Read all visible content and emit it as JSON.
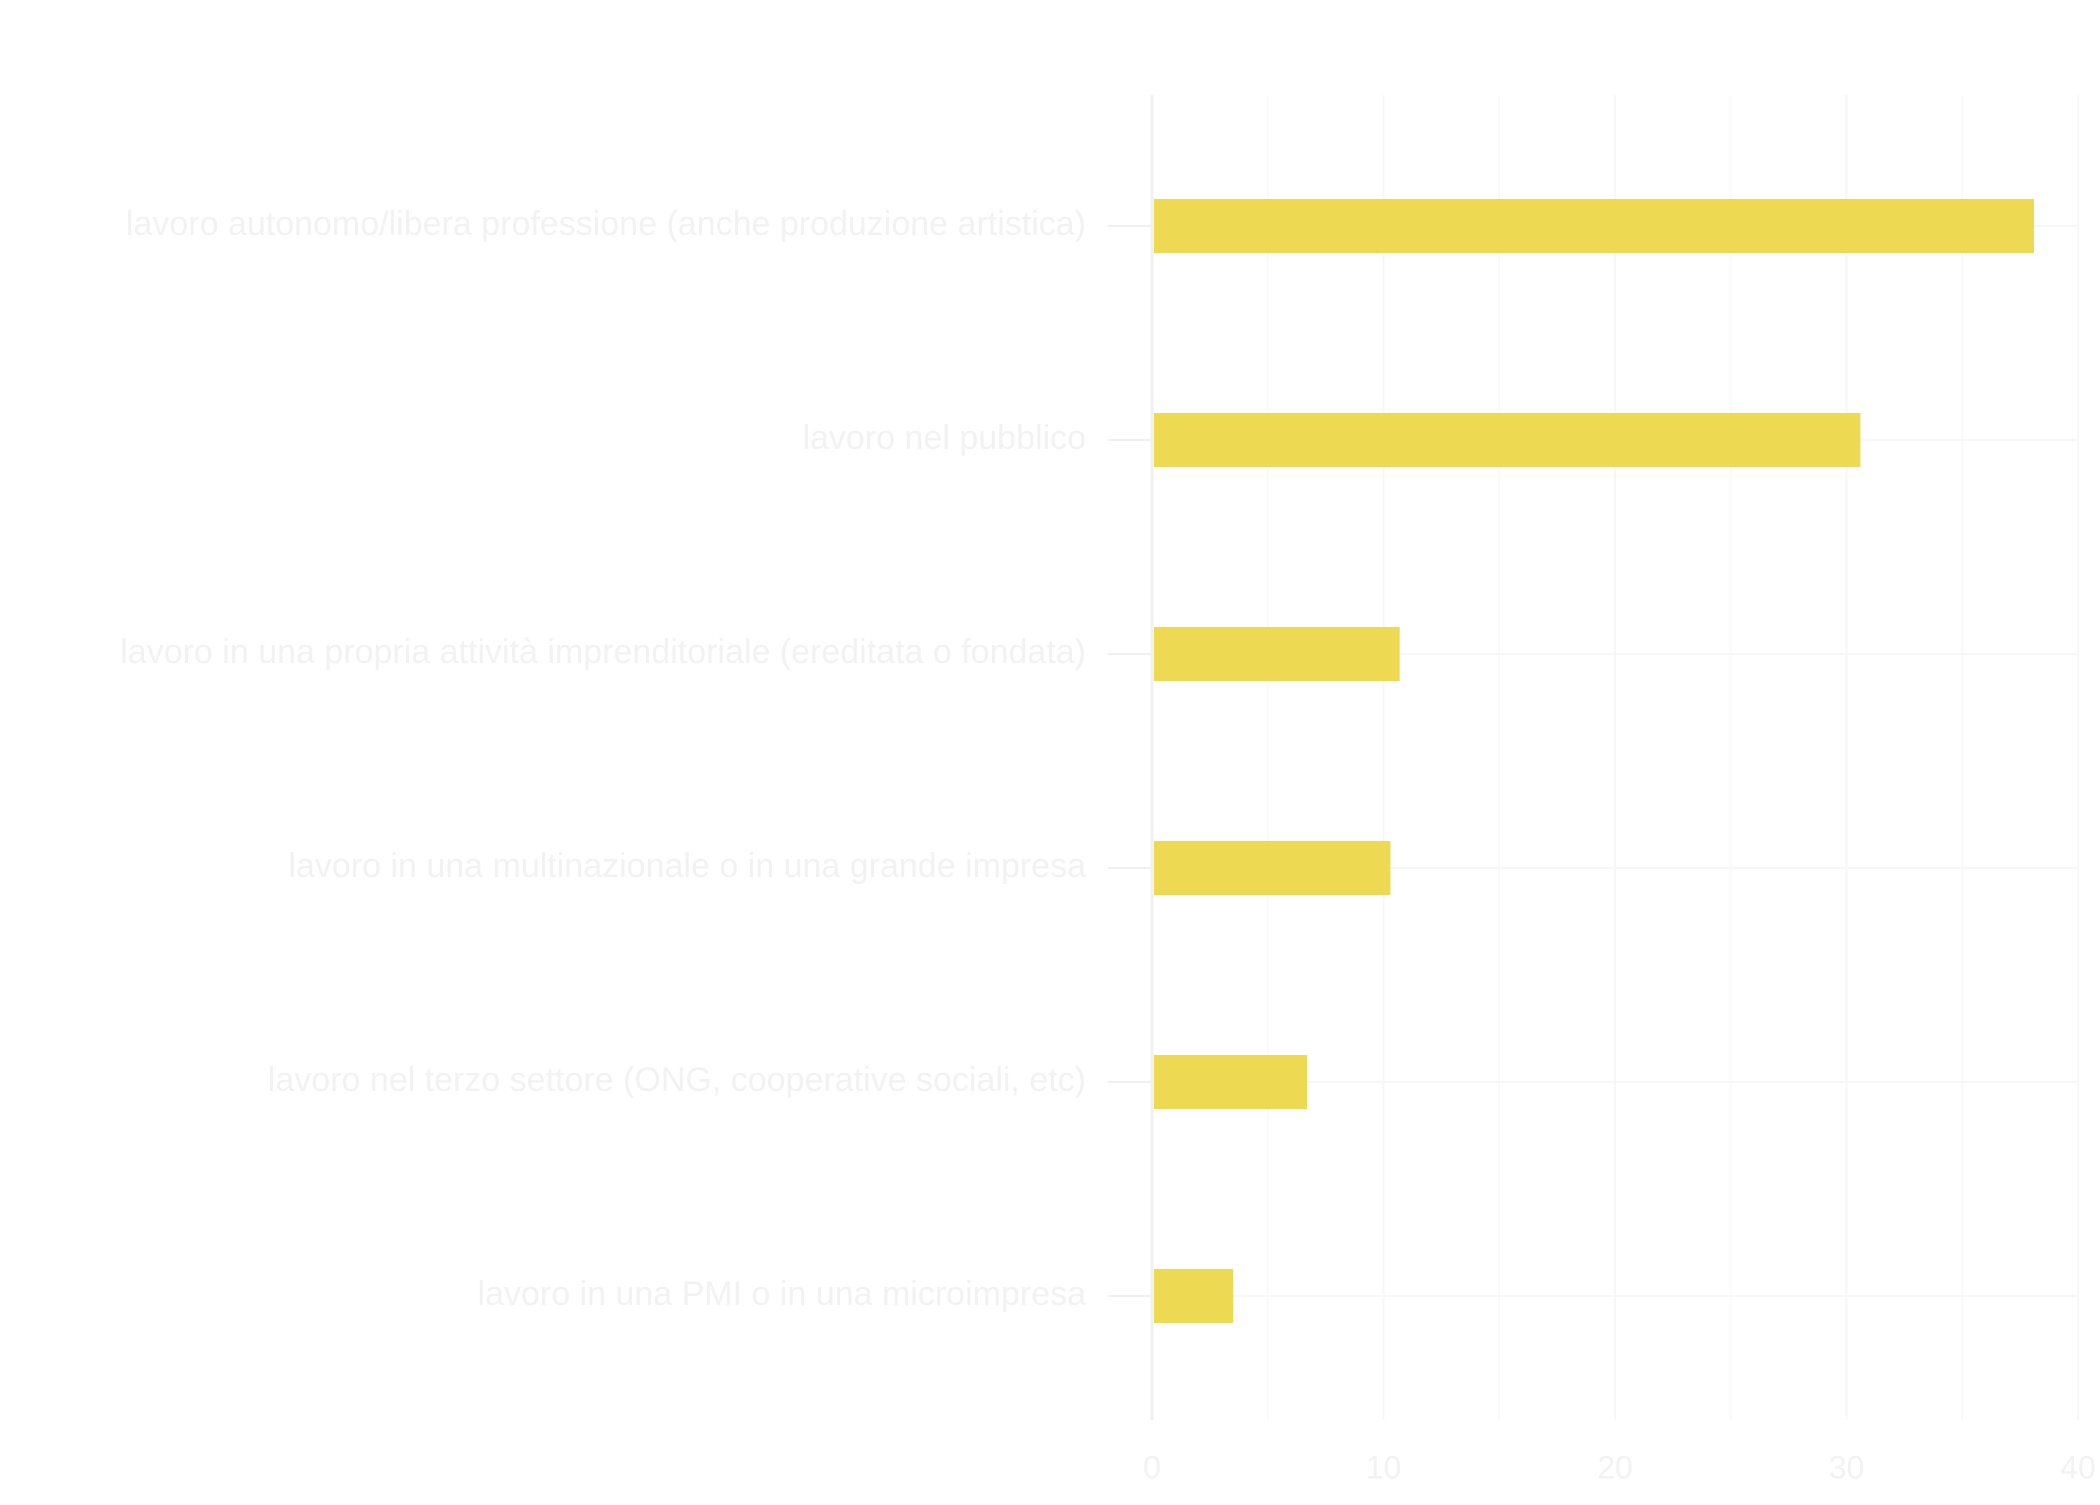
{
  "chart_data": {
    "type": "bar",
    "orientation": "horizontal",
    "categories": [
      "lavoro autonomo/libera professione (anche produzione artistica)",
      "lavoro nel pubblico",
      "lavoro in una propria attività imprenditoriale (ereditata o fondata)",
      "lavoro in una multinazionale o in una grande impresa",
      "lavoro nel terzo settore (ONG, cooperative sociali, etc)",
      "lavoro in una PMI o in una microimpresa"
    ],
    "values": [
      38.1,
      30.6,
      10.7,
      10.3,
      6.7,
      3.5
    ],
    "xlim": [
      0,
      40
    ],
    "x_ticks": [
      0,
      10,
      20,
      30,
      40
    ],
    "title": "",
    "xlabel": "",
    "ylabel": "",
    "grid": true,
    "legend": "none",
    "bar_color": "#EED952",
    "label_color": "#F2F2F2",
    "grid_color": "#F7F7F7",
    "axis_color": "#F0F0F0"
  }
}
